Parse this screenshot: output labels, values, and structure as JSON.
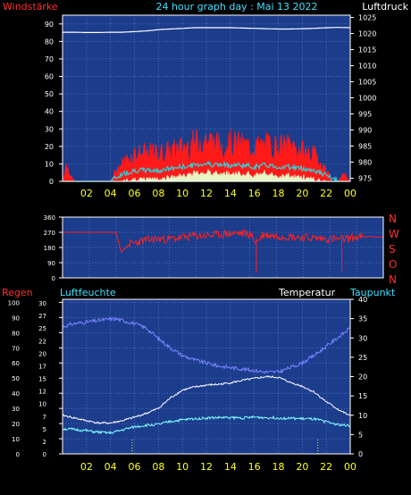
{
  "colors": {
    "background": "#000000",
    "plot_bg": "#1c3c8c",
    "grid": "#5a7fd0",
    "border": "#ffffff",
    "wind_avg": "#ff1a1a",
    "wind_gust_band": "#33d0d8",
    "wind_calm": "#e8ffd0",
    "pressure": "#ffffff",
    "direction": "#ff2020",
    "humidity": "#7b86ff",
    "temperature": "#ffffff",
    "dewpoint": "#80ffff",
    "rain": "#ffff00",
    "label_red": "#ff3030",
    "label_cyan": "#40e0ff",
    "label_yellow": "#ffff20",
    "label_white": "#ffffff"
  },
  "chart_data": [
    {
      "type": "line",
      "title": "24 hour graph day : Mai 13 2022",
      "left_axis_label": "Windstärke",
      "right_axis_label": "Luftdruck",
      "x_ticks": [
        "02",
        "04",
        "06",
        "08",
        "10",
        "12",
        "14",
        "16",
        "18",
        "20",
        "22",
        "00"
      ],
      "y_left_ticks": [
        "0",
        "10",
        "20",
        "30",
        "40",
        "50",
        "60",
        "70",
        "80",
        "90"
      ],
      "y_left_range": [
        0,
        95
      ],
      "y_right_ticks": [
        "975",
        "980",
        "985",
        "990",
        "995",
        "1000",
        "1005",
        "1010",
        "1015",
        "1020",
        "1025"
      ],
      "y_right_range": [
        974,
        1025.7
      ],
      "grid": true,
      "series": [
        {
          "name": "Luftdruck",
          "axis": "right",
          "x": [
            0,
            1,
            2,
            3,
            4,
            5,
            6,
            7,
            8,
            9,
            10,
            11,
            12,
            13,
            14,
            15,
            16,
            17,
            18,
            19,
            20,
            21,
            22,
            23,
            24
          ],
          "values": [
            1020.4,
            1020.4,
            1020.3,
            1020.3,
            1020.4,
            1020.4,
            1020.6,
            1020.8,
            1021.2,
            1021.4,
            1021.6,
            1021.8,
            1021.8,
            1021.8,
            1021.8,
            1021.7,
            1021.6,
            1021.5,
            1021.4,
            1021.4,
            1021.5,
            1021.6,
            1021.8,
            1021.9,
            1021.8
          ]
        },
        {
          "name": "Wind",
          "axis": "left",
          "x": [
            0,
            0.3,
            1,
            2,
            3,
            4,
            4.5,
            5,
            6,
            7,
            8,
            9,
            10,
            11,
            12,
            13,
            14,
            15,
            16,
            17,
            18,
            19,
            20,
            21,
            22,
            22.5,
            23,
            23.5,
            24
          ],
          "values": [
            0,
            7,
            0,
            0,
            0,
            0,
            6,
            9,
            14,
            14,
            14,
            15,
            17,
            19,
            21,
            18,
            19,
            18,
            17,
            18,
            17,
            18,
            15,
            13,
            6,
            0,
            0,
            4,
            0
          ]
        },
        {
          "name": "Wind gust band",
          "axis": "left",
          "x": [
            0,
            4,
            5,
            6,
            7,
            8,
            9,
            10,
            11,
            12,
            13,
            14,
            15,
            16,
            17,
            18,
            19,
            20,
            21,
            22,
            23,
            24
          ],
          "values": [
            0,
            0,
            4,
            6,
            6,
            6,
            7,
            8,
            9,
            10,
            9,
            9,
            9,
            8,
            9,
            8,
            8,
            7,
            6,
            3,
            0,
            0
          ]
        }
      ]
    },
    {
      "type": "scatter",
      "right_axis_label": "N W S O N",
      "compass": [
        "N",
        "W",
        "S",
        "O",
        "N"
      ],
      "x_ticks": [
        "02",
        "04",
        "06",
        "08",
        "10",
        "12",
        "14",
        "16",
        "18",
        "20",
        "22",
        "00"
      ],
      "y_left_ticks": [
        "0",
        "90",
        "180",
        "270",
        "360"
      ],
      "y_range": [
        0,
        360
      ],
      "grid": true,
      "series": [
        {
          "name": "Windrichtung",
          "x": [
            0,
            1,
            2,
            3,
            4,
            4.4,
            4.6,
            5,
            6,
            7,
            8,
            9,
            10,
            11,
            12,
            13,
            14,
            14.5,
            15,
            16,
            17,
            18,
            19,
            20,
            21,
            22,
            23,
            24
          ],
          "values": [
            270,
            270,
            270,
            270,
            270,
            150,
            170,
            200,
            220,
            230,
            230,
            240,
            250,
            250,
            260,
            265,
            260,
            210,
            255,
            250,
            245,
            240,
            235,
            230,
            230,
            240,
            245,
            240
          ]
        }
      ]
    },
    {
      "type": "line",
      "left_axis_label": "Regen",
      "left_axis_label_2": "Luftfeuchte",
      "right_axis_label": "Temperatur",
      "right_axis_label_2": "Taupunkt",
      "x_ticks": [
        "02",
        "04",
        "06",
        "08",
        "10",
        "12",
        "14",
        "16",
        "18",
        "20",
        "22",
        "00"
      ],
      "y_rain_ticks": [
        "0",
        "2",
        "5",
        "7",
        "10",
        "12",
        "15",
        "17",
        "20",
        "22",
        "25",
        "27",
        "30"
      ],
      "y_humidity_ticks": [
        "0",
        "10",
        "20",
        "30",
        "40",
        "50",
        "60",
        "70",
        "80",
        "90",
        "100"
      ],
      "y_right_ticks": [
        "0",
        "5",
        "10",
        "15",
        "20",
        "25",
        "30",
        "35",
        "40"
      ],
      "y_humidity_range": [
        0,
        102
      ],
      "y_right_range": [
        0,
        40
      ],
      "grid": true,
      "series": [
        {
          "name": "Luftfeuchte",
          "axis": "humidity",
          "x": [
            0,
            1,
            2,
            3,
            4,
            4.5,
            5,
            6,
            7,
            8,
            9,
            10,
            11,
            12,
            13,
            14,
            15,
            16,
            17,
            18,
            19,
            20,
            21,
            22,
            23,
            24
          ],
          "values": [
            84,
            86,
            87,
            88,
            89,
            89,
            88,
            86,
            83,
            76,
            70,
            65,
            62,
            60,
            58,
            57,
            56,
            55,
            54,
            54,
            57,
            60,
            65,
            71,
            77,
            83
          ]
        },
        {
          "name": "Temperatur",
          "axis": "right",
          "x": [
            0,
            1,
            2,
            3,
            4,
            5,
            6,
            7,
            8,
            9,
            10,
            11,
            12,
            13,
            14,
            15,
            16,
            17,
            18,
            19,
            20,
            21,
            22,
            23,
            24
          ],
          "values": [
            10,
            9.3,
            8.6,
            8,
            8,
            8.6,
            9.5,
            10.5,
            11.8,
            14.5,
            16.5,
            17.3,
            17.8,
            18,
            18.4,
            19,
            19.5,
            20,
            19.8,
            18.5,
            17.5,
            16,
            13.5,
            11.5,
            9.8
          ]
        },
        {
          "name": "Taupunkt",
          "axis": "right",
          "x": [
            0,
            1,
            2,
            3,
            4,
            5,
            6,
            7,
            8,
            9,
            10,
            11,
            12,
            13,
            14,
            15,
            16,
            17,
            18,
            19,
            20,
            21,
            22,
            23,
            24
          ],
          "values": [
            6.5,
            6.3,
            6,
            5.6,
            5.4,
            6.2,
            7,
            7.4,
            7.6,
            8.4,
            8.8,
            9.1,
            9.3,
            9.4,
            9.4,
            9.3,
            9.5,
            9.4,
            9.3,
            9.2,
            9.1,
            9,
            8.3,
            7.6,
            7.2
          ]
        },
        {
          "name": "Regen",
          "axis": "rain",
          "x": [
            5.8,
            21.3
          ],
          "values": [
            0,
            0
          ]
        }
      ]
    }
  ]
}
